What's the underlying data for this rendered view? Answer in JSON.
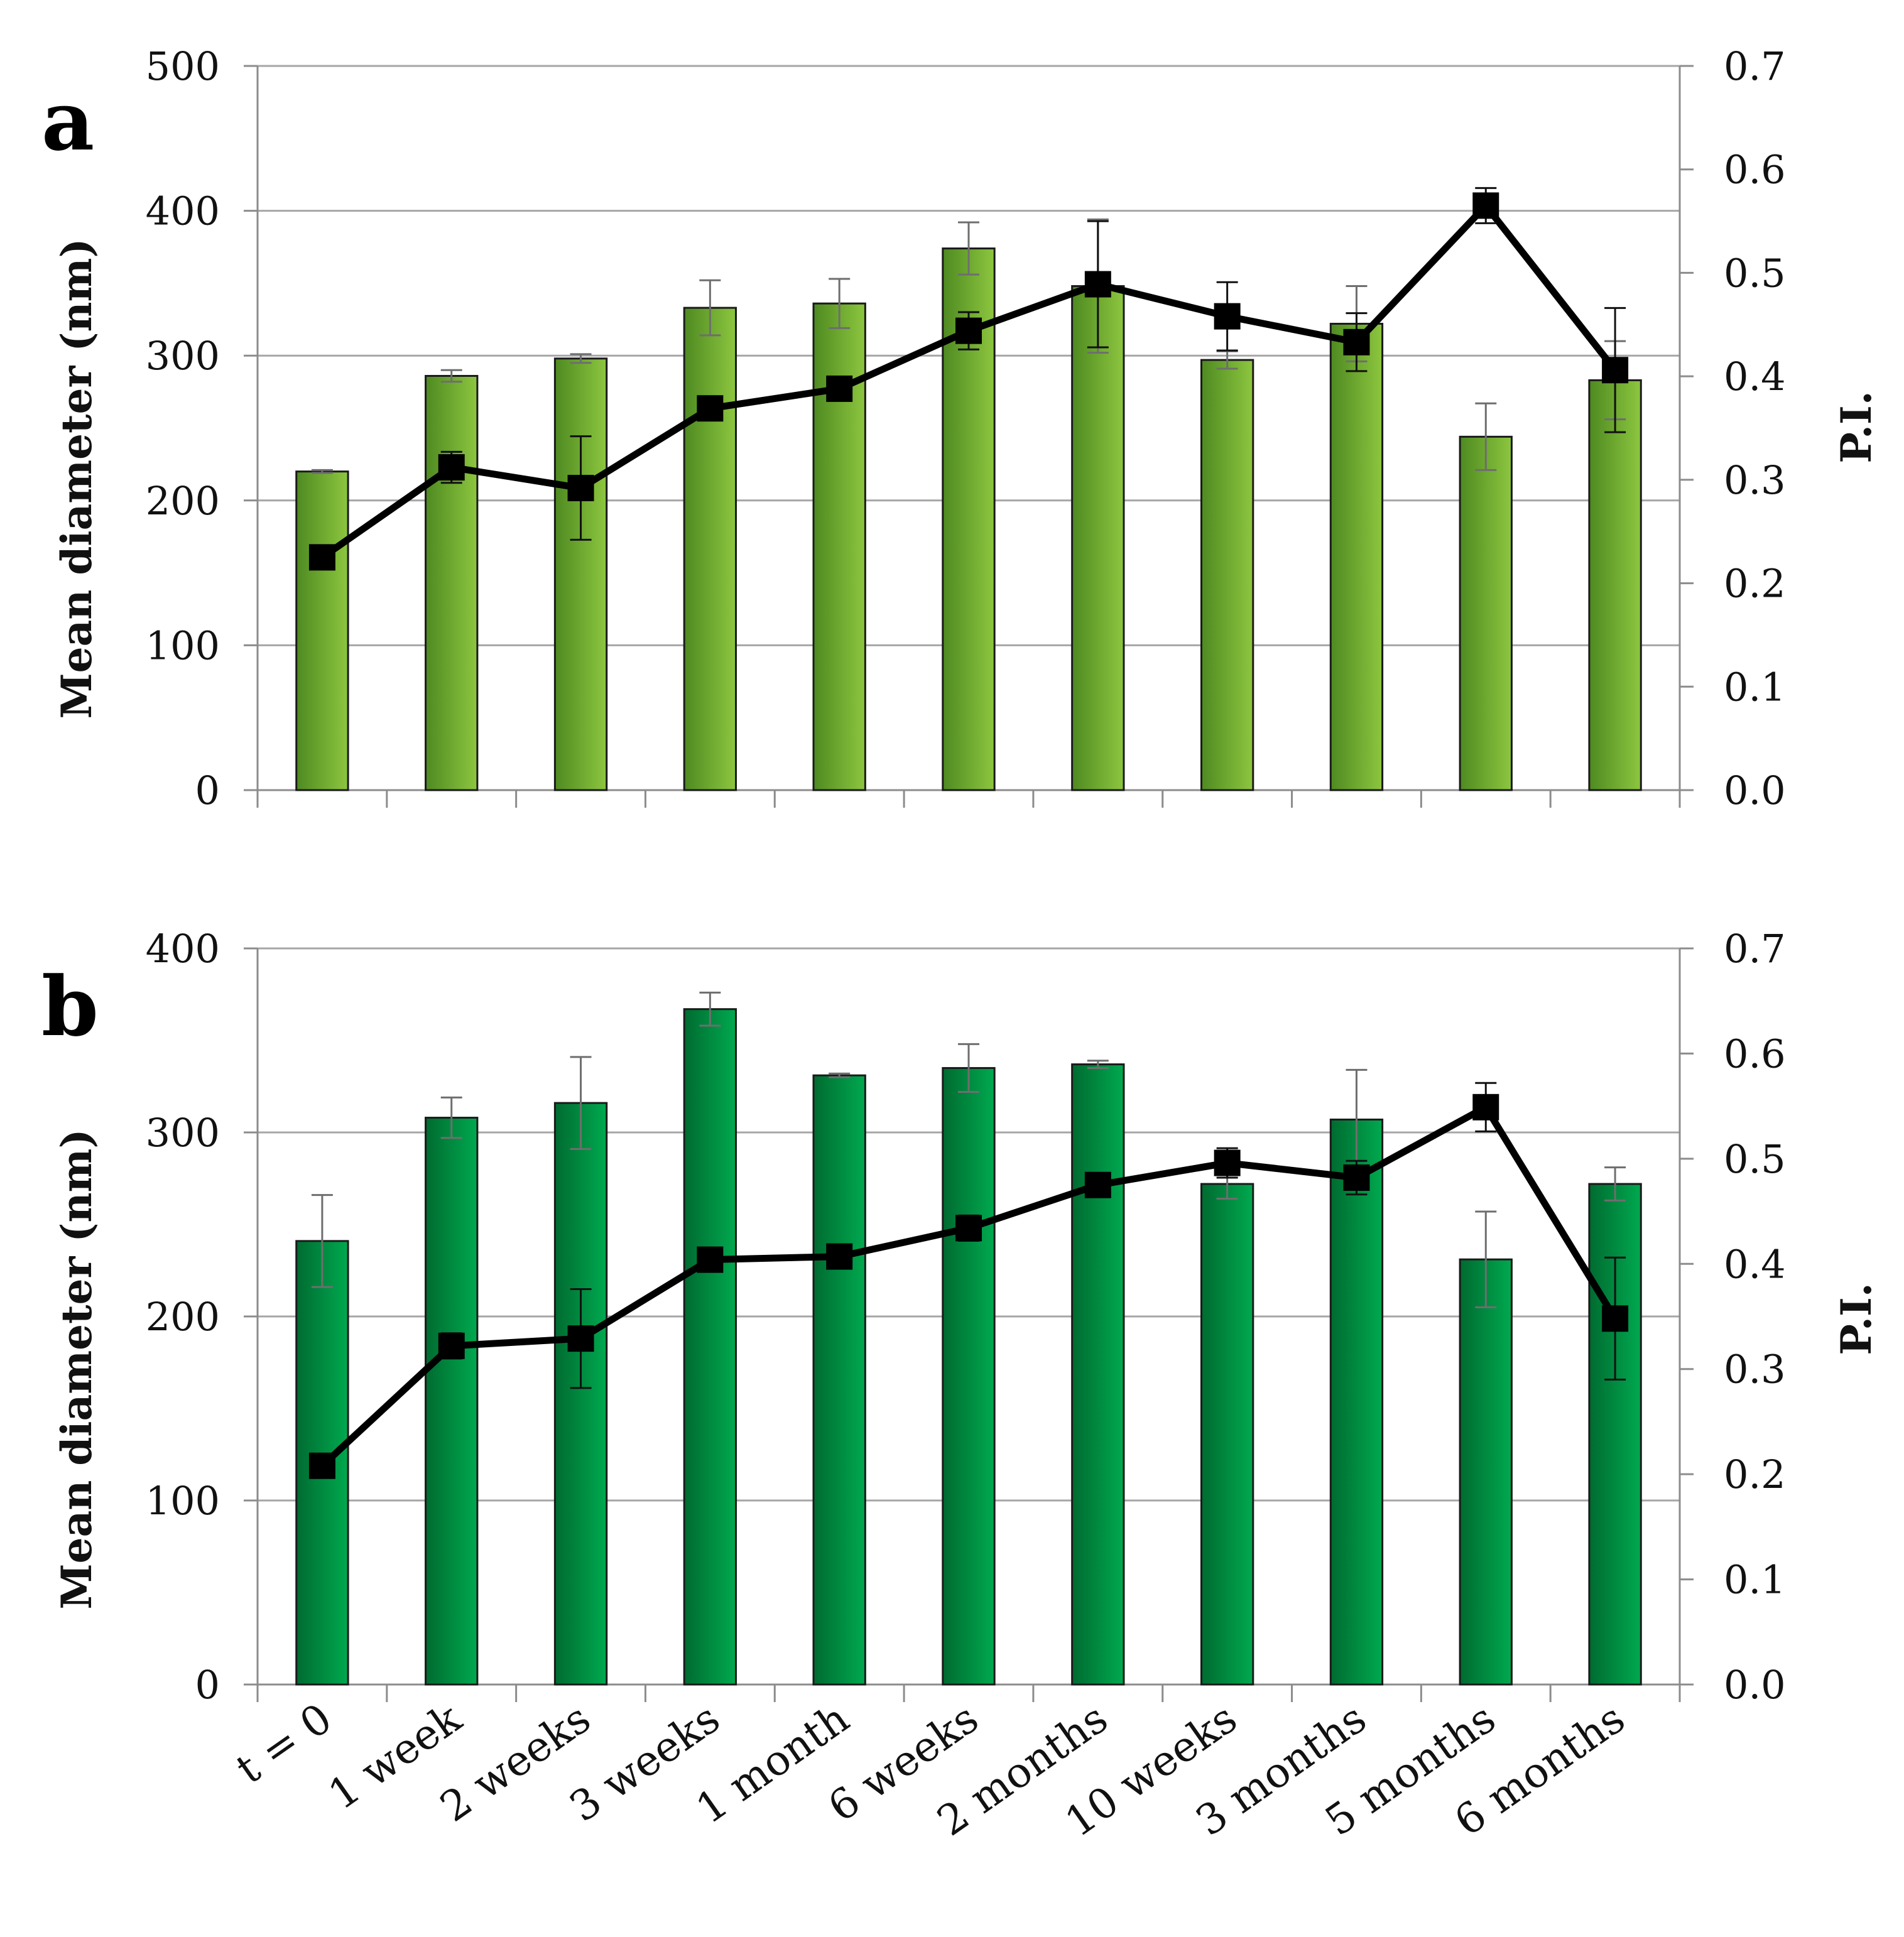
{
  "chart_data": [
    {
      "type": "bar",
      "panel": "a",
      "bar_color": "#8dc63f",
      "bar_color_dark": "#4e8a21",
      "categories": [
        "t = 0",
        "1 week",
        "2 weeks",
        "3 weeks",
        "1 month",
        "6 weeks",
        "2 months",
        "10 weeks",
        "3 months",
        "5 months",
        "6 months"
      ],
      "ylabel": "Mean diameter (nm)",
      "y2label": "P.I.",
      "ylim": [
        0,
        500
      ],
      "y_ticks": [
        0,
        100,
        200,
        300,
        400,
        500
      ],
      "y2lim": [
        0,
        0.7
      ],
      "y2_ticks": [
        "0.0",
        "0.1",
        "0.2",
        "0.3",
        "0.4",
        "0.5",
        "0.6",
        "0.7"
      ],
      "grid": true,
      "series": [
        {
          "name": "Mean diameter",
          "type": "bar",
          "axis": "left",
          "values": [
            220,
            286,
            298,
            333,
            336,
            374,
            348,
            297,
            322,
            244,
            283
          ],
          "errors": [
            1,
            4,
            3,
            19,
            17,
            18,
            46,
            6,
            26,
            23,
            27
          ]
        },
        {
          "name": "P.I.",
          "type": "line",
          "axis": "right",
          "values": [
            0.225,
            0.312,
            0.292,
            0.369,
            0.388,
            0.444,
            0.489,
            0.458,
            0.433,
            0.565,
            0.406
          ],
          "errors": [
            0.003,
            0.015,
            0.05,
            0.003,
            0.003,
            0.018,
            0.061,
            0.033,
            0.028,
            0.017,
            0.06
          ]
        }
      ]
    },
    {
      "type": "bar",
      "panel": "b",
      "bar_color": "#00a94f",
      "bar_color_dark": "#006b30",
      "categories": [
        "t = 0",
        "1 week",
        "2 weeks",
        "3 weeks",
        "1 month",
        "6 weeks",
        "2 months",
        "10 weeks",
        "3 months",
        "5 months",
        "6 months"
      ],
      "ylabel": "Mean diameter (nm)",
      "y2label": "P.I.",
      "ylim": [
        0,
        400
      ],
      "y_ticks": [
        0,
        100,
        200,
        300,
        400
      ],
      "y2lim": [
        0,
        0.7
      ],
      "y2_ticks": [
        "0.0",
        "0.1",
        "0.2",
        "0.3",
        "0.4",
        "0.5",
        "0.6",
        "0.7"
      ],
      "grid": true,
      "series": [
        {
          "name": "Mean diameter",
          "type": "bar",
          "axis": "left",
          "values": [
            241,
            308,
            316,
            367,
            331,
            335,
            337,
            272,
            307,
            231,
            272
          ],
          "errors": [
            25,
            11,
            25,
            9,
            1,
            13,
            2,
            8,
            27,
            26,
            9
          ]
        },
        {
          "name": "P.I.",
          "type": "line",
          "axis": "right",
          "values": [
            0.208,
            0.322,
            0.329,
            0.404,
            0.407,
            0.434,
            0.475,
            0.496,
            0.482,
            0.549,
            0.348
          ],
          "errors": [
            0.003,
            0.012,
            0.047,
            0.003,
            0.003,
            0.012,
            0.003,
            0.014,
            0.016,
            0.023,
            0.058
          ]
        }
      ]
    }
  ]
}
